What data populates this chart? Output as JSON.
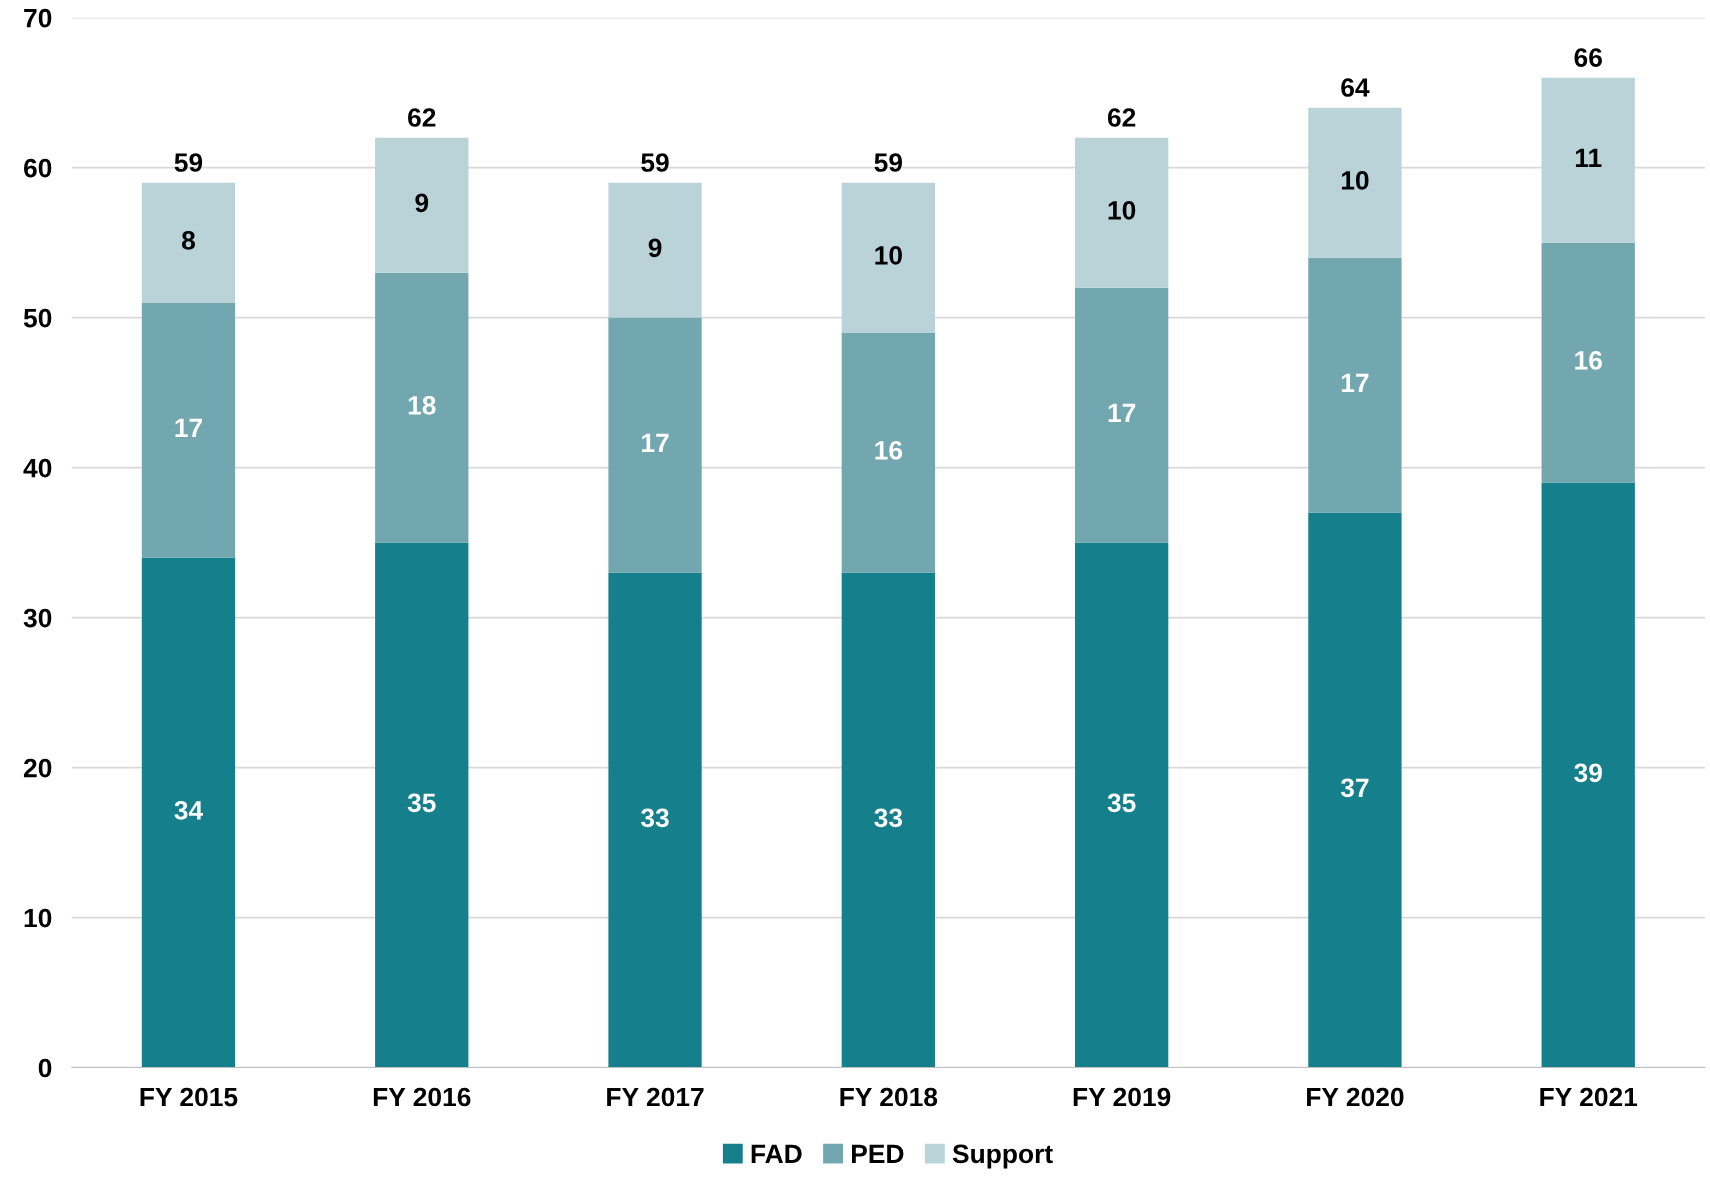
{
  "chart_data": {
    "type": "bar",
    "stacked": true,
    "categories": [
      "FY 2015",
      "FY 2016",
      "FY 2017",
      "FY 2018",
      "FY 2019",
      "FY 2020",
      "FY 2021"
    ],
    "series": [
      {
        "name": "FAD",
        "color": "#157f8b",
        "values": [
          34,
          35,
          33,
          33,
          35,
          37,
          39
        ]
      },
      {
        "name": "PED",
        "color": "#72a7b0",
        "values": [
          17,
          18,
          17,
          16,
          17,
          17,
          16
        ]
      },
      {
        "name": "Support",
        "color": "#b9d3d9",
        "values": [
          8,
          9,
          9,
          10,
          10,
          10,
          11
        ]
      }
    ],
    "totals": [
      "59",
      "62",
      "59",
      "59",
      "62",
      "64",
      "66"
    ],
    "data_labels": true,
    "ylim": [
      0,
      70
    ],
    "yticks": [
      0,
      10,
      20,
      30,
      40,
      50,
      60,
      70
    ],
    "grid": "y",
    "legend": "bottom"
  }
}
